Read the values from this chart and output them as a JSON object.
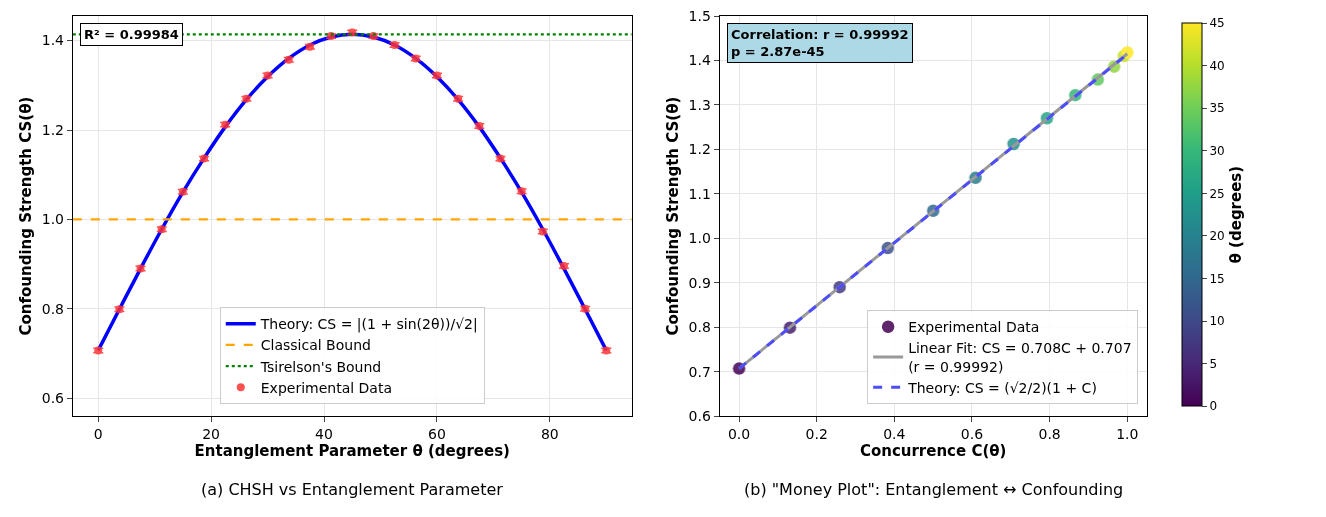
{
  "chart_data": [
    {
      "type": "line",
      "xlabel": "Entanglement Parameter θ (degrees)",
      "ylabel": "Confounding Strength CS(θ)",
      "annotations": [
        "R² = 0.99984",
        "(a) CHSH vs Entanglement Parameter"
      ],
      "x": [
        0,
        3.75,
        7.5,
        11.25,
        15,
        18.75,
        22.5,
        26.25,
        30,
        33.75,
        37.5,
        41.25,
        45,
        48.75,
        52.5,
        56.25,
        60,
        63.75,
        67.5,
        71.25,
        75,
        78.75,
        82.5,
        86.25,
        90
      ],
      "series": [
        {
          "name": "Theory: CS = |(1 + sin(2θ))/√2|",
          "color": "#0000ff",
          "line_style": "solid",
          "values": [
            0.707,
            0.799,
            0.89,
            0.978,
            1.061,
            1.137,
            1.207,
            1.268,
            1.319,
            1.36,
            1.39,
            1.408,
            1.414,
            1.408,
            1.39,
            1.36,
            1.319,
            1.268,
            1.207,
            1.137,
            1.061,
            0.978,
            0.89,
            0.799,
            0.707
          ]
        },
        {
          "name": "Experimental Data",
          "type": "scatter",
          "color": "#ff3333",
          "marker": "circle",
          "values": [
            0.707,
            0.799,
            0.89,
            0.978,
            1.062,
            1.136,
            1.212,
            1.27,
            1.322,
            1.357,
            1.386,
            1.41,
            1.418,
            1.41,
            1.39,
            1.36,
            1.322,
            1.27,
            1.209,
            1.136,
            1.063,
            0.973,
            0.896,
            0.8,
            0.707
          ],
          "errors": [
            0.005,
            0.005,
            0.005,
            0.005,
            0.005,
            0.005,
            0.005,
            0.005,
            0.005,
            0.005,
            0.005,
            0.005,
            0.005,
            0.005,
            0.005,
            0.005,
            0.005,
            0.005,
            0.005,
            0.005,
            0.005,
            0.005,
            0.005,
            0.005,
            0.005
          ]
        }
      ],
      "ref_lines": [
        {
          "axis": "y",
          "value": 1.0,
          "label": "Classical Bound",
          "color": "#ffa500",
          "line_style": "dashed"
        },
        {
          "axis": "y",
          "value": 1.414,
          "label": "Tsirelson's Bound",
          "color": "#008000",
          "line_style": "dotted"
        }
      ],
      "xlim": [
        -4.5,
        94.5
      ],
      "xticks": [
        0,
        20,
        40,
        60,
        80
      ],
      "ylim": [
        0.56,
        1.455
      ],
      "yticks": [
        0.6,
        0.8,
        {
          "value": 1,
          "label": "1.0"
        },
        1.2,
        1.4
      ],
      "grid": true,
      "legend": "bottom"
    },
    {
      "type": "scatter",
      "xlabel": "Concurrence C(θ)",
      "ylabel": "Confounding Strength CS(θ)",
      "clabel": "θ (degrees)",
      "annotations": [
        "Correlation: r = 0.99992\np = 2.87e-45",
        "(b) \"Money Plot\": Entanglement ↔ Confounding"
      ],
      "series": [
        {
          "name": "Experimental Data",
          "marker": "circle",
          "colors": [
            "#440154",
            "#471e6f",
            "#433981",
            "#3b518a",
            "#31688e",
            "#297c8e",
            "#23908c",
            "#25a485",
            "#35b779",
            "#60c860",
            "#92d642",
            "#c7e02a",
            "#fde725"
          ],
          "x": [
            0,
            0.131,
            0.259,
            0.383,
            0.5,
            0.609,
            0.707,
            0.793,
            0.866,
            0.924,
            0.966,
            0.991,
            1.0
          ],
          "values": [
            0.707,
            0.799,
            0.89,
            0.978,
            1.062,
            1.136,
            1.212,
            1.27,
            1.322,
            1.357,
            1.386,
            1.41,
            1.418
          ],
          "cvalues": [
            0,
            3.75,
            7.5,
            11.25,
            15,
            18.75,
            22.5,
            26.25,
            30,
            33.75,
            37.5,
            41.25,
            45
          ]
        },
        {
          "name": "Linear Fit: CS = 0.708C + 0.707\n(r = 0.99992)",
          "type": "line",
          "color": "#999999",
          "line_style": "solid",
          "x": [
            0,
            1
          ],
          "values": [
            0.707,
            1.415
          ]
        },
        {
          "name": "Theory: CS = (√2/2)(1 + C)",
          "type": "line",
          "color": "#4d4dff",
          "line_style": "dashed",
          "x": [
            0,
            1
          ],
          "values": [
            0.707,
            1.414
          ]
        }
      ],
      "xlim": [
        -0.05,
        1.05
      ],
      "xticks": [
        {
          "value": 0,
          "label": "0.0"
        },
        0.2,
        0.4,
        0.6,
        0.8,
        {
          "value": 1,
          "label": "1.0"
        }
      ],
      "ylim": [
        0.6,
        1.5
      ],
      "yticks": [
        0.6,
        0.7,
        0.8,
        0.9,
        {
          "value": 1,
          "label": "1.0"
        },
        1.1,
        1.2,
        1.3,
        1.4,
        1.5
      ],
      "clim": [
        0,
        45
      ],
      "cticks": [
        0,
        5,
        10,
        15,
        20,
        25,
        30,
        35,
        40,
        45
      ],
      "grid": true,
      "legend": "bottom right"
    }
  ]
}
